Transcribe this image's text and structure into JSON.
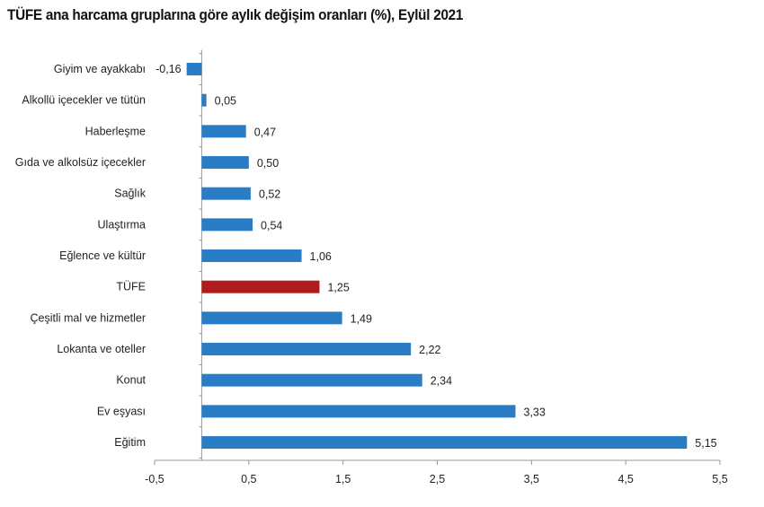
{
  "chart_data": {
    "type": "bar",
    "orientation": "horizontal",
    "title": "TÜFE ana harcama gruplarına göre aylık değişim oranları (%), Eylül 2021",
    "categories": [
      "Giyim ve ayakkabı",
      "Alkollü içecekler ve tütün",
      "Haberleşme",
      "Gıda ve alkolsüz içecekler",
      "Sağlık",
      "Ulaştırma",
      "Eğlence ve kültür",
      "TÜFE",
      "Çeşitli mal ve hizmetler",
      "Lokanta ve oteller",
      "Konut",
      "Ev eşyası",
      "Eğitim"
    ],
    "values": [
      -0.16,
      0.05,
      0.47,
      0.5,
      0.52,
      0.54,
      1.06,
      1.25,
      1.49,
      2.22,
      2.34,
      3.33,
      5.15
    ],
    "value_labels": [
      "-0,16",
      "0,05",
      "0,47",
      "0,50",
      "0,52",
      "0,54",
      "1,06",
      "1,25",
      "1,49",
      "2,22",
      "2,34",
      "3,33",
      "5,15"
    ],
    "highlight_index": 7,
    "xlim": [
      -0.5,
      5.5
    ],
    "xticks": [
      -0.5,
      0.5,
      1.5,
      2.5,
      3.5,
      4.5,
      5.5
    ],
    "xtick_labels": [
      "-0,5",
      "0,5",
      "1,5",
      "2,5",
      "3,5",
      "4,5",
      "5,5"
    ],
    "xlabel": "",
    "ylabel": "",
    "grid": false,
    "colors": {
      "bar": "#2a7dc4",
      "highlight": "#b01c1c",
      "axis": "#999999"
    }
  }
}
